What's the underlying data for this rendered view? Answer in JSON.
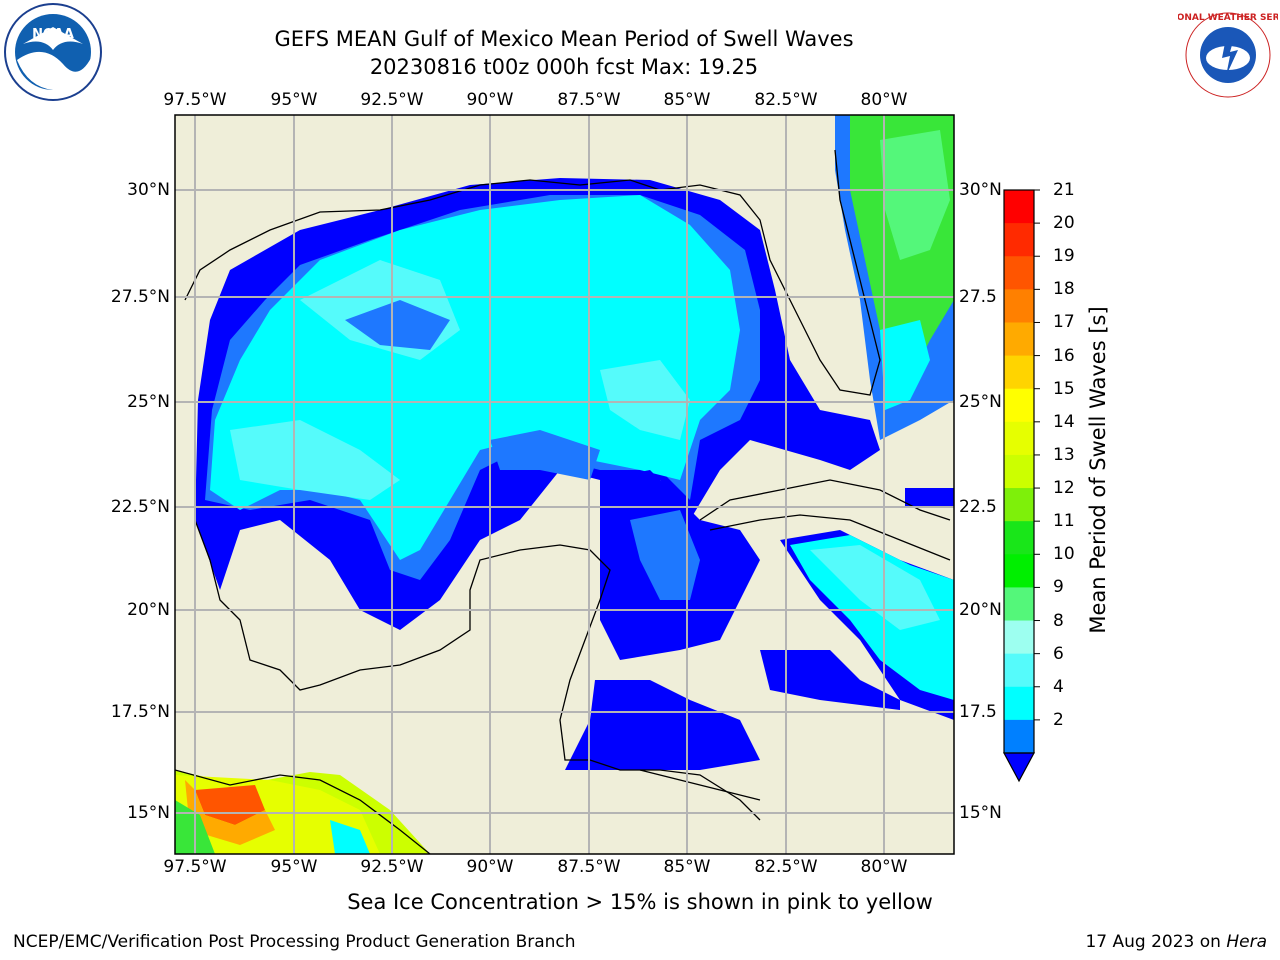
{
  "title": {
    "line1": "GEFS MEAN Gulf of Mexico Mean Period of Swell Waves",
    "line2": "20230816 t00z 000h fcst   Max: 19.25"
  },
  "lon_labels": [
    "97.5°W",
    "95°W",
    "92.5°W",
    "90°W",
    "87.5°W",
    "85°W",
    "82.5°W",
    "80°W"
  ],
  "lat_labels_left": [
    "30°N",
    "27.5°N",
    "25°N",
    "22.5°N",
    "20°N",
    "17.5°N",
    "15°N"
  ],
  "lat_labels_right": [
    "30°N",
    "27.5",
    "25°N",
    "22.5",
    "20°N",
    "17.5",
    "15°N"
  ],
  "colorbar": {
    "label": "Mean Period of Swell Waves [s]",
    "ticks": [
      "21",
      "20",
      "19",
      "18",
      "17",
      "16",
      "15",
      "14",
      "13",
      "12",
      "11",
      "10",
      "9",
      "8",
      "6",
      "4",
      "2"
    ],
    "colors": [
      "#ff0000",
      "#ff2a00",
      "#ff5500",
      "#ff8000",
      "#ffaa00",
      "#ffd400",
      "#ffff00",
      "#e6ff00",
      "#ccff00",
      "#7ef00a",
      "#19e619",
      "#00ef00",
      "#54f77a",
      "#9dfff0",
      "#55fbfb",
      "#00ffff",
      "#0080ff"
    ],
    "extend_color": "#0000ff"
  },
  "map_colors": {
    "land": "#efeed9",
    "water_no_data": "#ffffff",
    "blue": "#0000ff",
    "mid_blue": "#1e78ff",
    "cyan": "#00ffff",
    "light_cyan": "#55fbfb",
    "green": "#39e639",
    "light_green": "#54f77a",
    "grid": "#b4b4b4"
  },
  "logos": {
    "left": "NOAA",
    "right": "NATIONAL WEATHER SERVICE"
  },
  "caption": "Sea Ice Concentration > 15% is shown in pink to yellow",
  "footer": {
    "left": "NCEP/EMC/Verification Post Processing Product Generation Branch",
    "right_date": "17 Aug 2023 on ",
    "right_host": "Hera"
  }
}
